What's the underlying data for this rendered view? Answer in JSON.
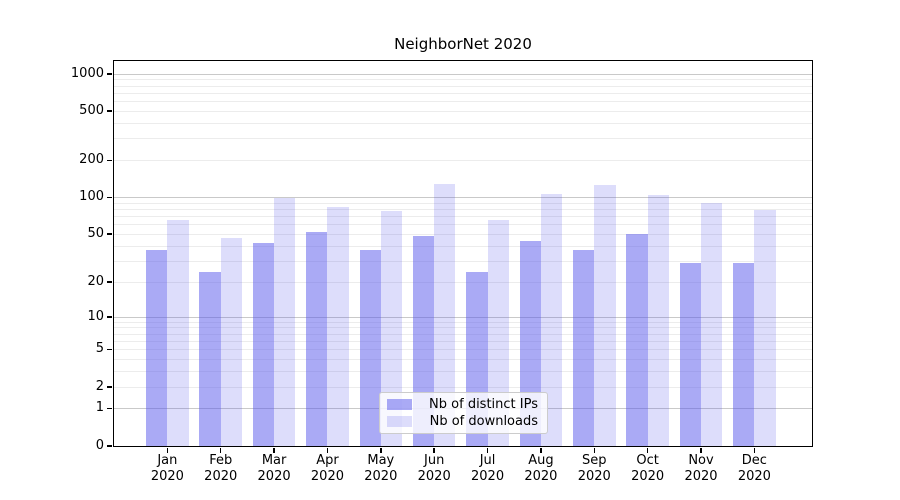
{
  "chart_data": {
    "type": "bar",
    "title": "NeighborNet 2020",
    "categories": [
      "Jan 2020",
      "Feb 2020",
      "Mar 2020",
      "Apr 2020",
      "May 2020",
      "Jun 2020",
      "Jul 2020",
      "Aug 2020",
      "Sep 2020",
      "Oct 2020",
      "Nov 2020",
      "Dec 2020"
    ],
    "months": [
      "Jan",
      "Feb",
      "Mar",
      "Apr",
      "May",
      "Jun",
      "Jul",
      "Aug",
      "Sep",
      "Oct",
      "Nov",
      "Dec"
    ],
    "year": "2020",
    "series": [
      {
        "name": "Nb of distinct IPs",
        "color": "rgba(85,85,235,0.5)",
        "values": [
          37,
          24,
          42,
          52,
          37,
          48,
          24,
          44,
          37,
          50,
          29,
          29
        ]
      },
      {
        "name": "Nb of downloads",
        "color": "rgba(85,85,235,0.2)",
        "values": [
          65,
          46,
          98,
          83,
          77,
          128,
          65,
          106,
          126,
          105,
          90,
          79
        ]
      }
    ],
    "xlabel": "",
    "ylabel": "",
    "yscale": "log1p (y position proportional to log10(1+value))",
    "ylim": [
      0,
      1265
    ],
    "yticks": [
      0,
      1,
      2,
      5,
      10,
      20,
      50,
      100,
      200,
      500,
      1000
    ],
    "grid": "horizontal major and minor gridlines on",
    "major_gridlines": [
      1,
      10,
      100,
      1000
    ],
    "minor_gridlines": [
      2,
      3,
      4,
      5,
      6,
      7,
      8,
      9,
      20,
      30,
      40,
      50,
      60,
      70,
      80,
      90,
      200,
      300,
      400,
      500,
      600,
      700,
      800,
      900
    ],
    "legend_position": "inside lower-center"
  },
  "colors": {
    "background": "#ffffff",
    "spine": "#000000",
    "grid_major": "#c9c9c9",
    "grid_minor": "#ececec",
    "bar_distinct_ips": "rgba(85,85,235,0.5)",
    "bar_downloads": "rgba(85,85,235,0.2)",
    "legend_border": "#cccccc",
    "text": "#000000"
  }
}
